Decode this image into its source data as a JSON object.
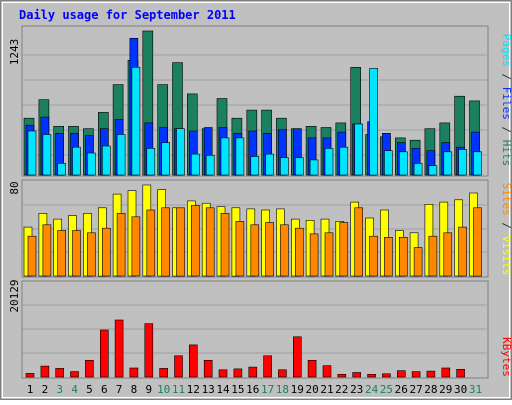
{
  "chart_data": [
    {
      "type": "bar",
      "title": "Daily usage for September 2011",
      "categories": [
        "1",
        "2",
        "3",
        "4",
        "5",
        "6",
        "7",
        "8",
        "9",
        "10",
        "11",
        "12",
        "13",
        "14",
        "15",
        "16",
        "17",
        "18",
        "19",
        "20",
        "21",
        "22",
        "23",
        "24",
        "25",
        "26",
        "27",
        "28",
        "29",
        "30",
        "31"
      ],
      "weekend_days": [
        "3",
        "4",
        "10",
        "11",
        "17",
        "18",
        "24",
        "25",
        "31"
      ],
      "ylabel_max": "1243",
      "ymax": 1243,
      "series": [
        {
          "name": "Hits",
          "color": "#1a8060",
          "values": [
            490,
            650,
            420,
            420,
            400,
            540,
            780,
            990,
            1243,
            780,
            970,
            700,
            400,
            660,
            490,
            560,
            560,
            490,
            400,
            420,
            410,
            450,
            930,
            350,
            330,
            320,
            300,
            400,
            450,
            680,
            640
          ]
        },
        {
          "name": "Files",
          "color": "#0033ff",
          "values": [
            430,
            500,
            360,
            360,
            340,
            400,
            480,
            1180,
            450,
            410,
            400,
            380,
            410,
            410,
            360,
            380,
            360,
            390,
            400,
            320,
            320,
            370,
            440,
            460,
            360,
            280,
            230,
            210,
            280,
            240,
            370
          ]
        },
        {
          "name": "Pages",
          "color": "#00e5ff",
          "values": [
            380,
            350,
            100,
            240,
            190,
            250,
            350,
            930,
            230,
            280,
            400,
            180,
            170,
            320,
            320,
            160,
            180,
            150,
            150,
            130,
            230,
            240,
            440,
            920,
            210,
            200,
            100,
            80,
            200,
            220,
            200
          ]
        }
      ],
      "axis_label_parts": [
        "Pages",
        " / ",
        "Files",
        " / ",
        "Hits"
      ],
      "axis_label_colors": [
        "#00e5ff",
        "#333333",
        "#0033ff",
        "#333333",
        "#1a8060"
      ],
      "data_slices": [
        {
          "series_index": 0,
          "start": 0,
          "end": 31
        },
        {
          "series_index": 1,
          "start": 0,
          "end": 31
        },
        {
          "series_index": 2,
          "start": 0,
          "end": 31
        }
      ]
    },
    {
      "type": "bar",
      "categories": [
        "1",
        "2",
        "3",
        "4",
        "5",
        "6",
        "7",
        "8",
        "9",
        "10",
        "11",
        "12",
        "13",
        "14",
        "15",
        "16",
        "17",
        "18",
        "19",
        "20",
        "21",
        "22",
        "23",
        "24",
        "25",
        "26",
        "27",
        "28",
        "29",
        "30",
        "31"
      ],
      "ylabel_max": "80",
      "ymax": 80,
      "series": [
        {
          "name": "Visits",
          "color": "#ffff00",
          "values": [
            43,
            55,
            50,
            53,
            55,
            60,
            72,
            75,
            80,
            76,
            60,
            66,
            64,
            61,
            60,
            59,
            58,
            59,
            50,
            49,
            50,
            48,
            65,
            51,
            58,
            40,
            38,
            63,
            65,
            67,
            73
          ]
        },
        {
          "name": "Sites",
          "color": "#ff8800",
          "values": [
            35,
            45,
            40,
            40,
            38,
            42,
            55,
            52,
            58,
            60,
            60,
            62,
            60,
            55,
            48,
            45,
            47,
            45,
            42,
            37,
            38,
            47,
            60,
            35,
            34,
            34,
            25,
            35,
            38,
            43,
            60
          ]
        }
      ],
      "axis_label_parts": [
        "Sites",
        " / ",
        "Visits"
      ],
      "axis_label_colors": [
        "#ff8800",
        "#333333",
        "#ffff00"
      ]
    },
    {
      "type": "bar",
      "categories": [
        "1",
        "2",
        "3",
        "4",
        "5",
        "6",
        "7",
        "8",
        "9",
        "10",
        "11",
        "12",
        "13",
        "14",
        "15",
        "16",
        "17",
        "18",
        "19",
        "20",
        "21",
        "22",
        "23",
        "24",
        "25",
        "26",
        "27",
        "28",
        "29",
        "30",
        "31"
      ],
      "ylabel_max": "20129",
      "ymax": 20129,
      "series": [
        {
          "name": "KBytes",
          "color": "#ff0000",
          "values": [
            800,
            2400,
            1900,
            1200,
            3700,
            10400,
            12600,
            2000,
            11800,
            1900,
            4700,
            7100,
            3700,
            1600,
            1800,
            2200,
            4700,
            1600,
            8900,
            3700,
            2500,
            600,
            1000,
            600,
            700,
            1400,
            1200,
            1300,
            2000,
            1700,
            0
          ]
        }
      ],
      "axis_label_parts": [
        "KBytes"
      ],
      "axis_label_colors": [
        "#ff0000"
      ]
    }
  ],
  "colors": {
    "background": "#c0c0c0",
    "plot_background": "#c0c0c0",
    "border_dark": "#808080",
    "border_light": "#ffffff",
    "title": "#0000ff",
    "weekday_label": "#000000",
    "weekend_label": "#1a8060",
    "grid": "#a0a0a0"
  }
}
